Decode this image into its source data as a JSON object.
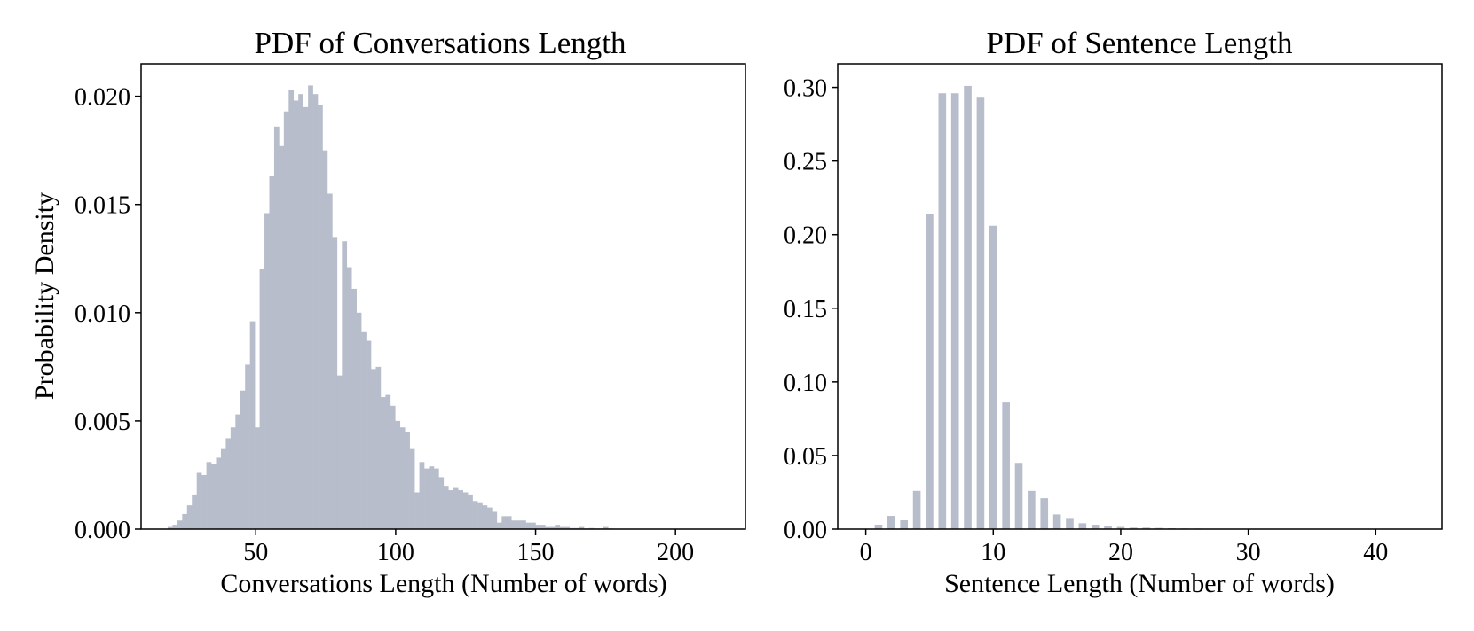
{
  "colors": {
    "bar": "#b7bdcb",
    "axis": "#000000",
    "background": "#ffffff"
  },
  "chart_data": [
    {
      "type": "bar",
      "title": "PDF of Conversations Length",
      "xlabel": "Conversations Length (Number of words)",
      "ylabel": "Probability Density",
      "xlim": [
        9,
        225
      ],
      "ylim": [
        0,
        0.0215
      ],
      "xticks": [
        50,
        100,
        150,
        200
      ],
      "xtick_labels": [
        "50",
        "100",
        "150",
        "200"
      ],
      "yticks": [
        0.0,
        0.005,
        0.01,
        0.015,
        0.02
      ],
      "ytick_labels": [
        "0.000",
        "0.005",
        "0.010",
        "0.015",
        "0.020"
      ],
      "bin_width": 1.73,
      "bin_start": 18.5,
      "values": [
        0.0001,
        0.0002,
        0.0004,
        0.0007,
        0.0011,
        0.0016,
        0.0026,
        0.0025,
        0.0031,
        0.003,
        0.0033,
        0.0037,
        0.0042,
        0.0047,
        0.0053,
        0.0064,
        0.0076,
        0.0096,
        0.0047,
        0.012,
        0.0146,
        0.0163,
        0.0186,
        0.0177,
        0.0193,
        0.0203,
        0.0198,
        0.0201,
        0.0195,
        0.0205,
        0.0201,
        0.0196,
        0.0175,
        0.0155,
        0.0135,
        0.0071,
        0.0133,
        0.0121,
        0.0111,
        0.01,
        0.0091,
        0.0087,
        0.0074,
        0.0075,
        0.0061,
        0.0062,
        0.0057,
        0.005,
        0.0047,
        0.0045,
        0.0037,
        0.0017,
        0.0031,
        0.0028,
        0.0029,
        0.0028,
        0.0024,
        0.002,
        0.0018,
        0.0019,
        0.0018,
        0.0017,
        0.0016,
        0.0013,
        0.0012,
        0.0011,
        0.001,
        0.0008,
        0.0003,
        0.0006,
        0.0006,
        0.0004,
        0.0004,
        0.0004,
        0.0003,
        0.0003,
        0.0002,
        0.0002,
        0.0001,
        0.0001,
        0.0002,
        0.0001,
        0.0001,
        5e-05,
        5e-05,
        0.0001,
        3e-05,
        5e-05,
        3e-05,
        3e-05,
        0.0001,
        3e-05,
        2e-05,
        2e-05,
        2e-05,
        1e-05,
        1e-05,
        1e-05,
        1e-05,
        1e-05,
        1e-05,
        1e-05
      ],
      "grid": false,
      "legend": "none"
    },
    {
      "type": "bar",
      "title": "PDF of Sentence Length",
      "xlabel": "Sentence Length (Number of words)",
      "ylabel": "",
      "xlim": [
        -2.2,
        45.2
      ],
      "ylim": [
        0,
        0.316
      ],
      "xticks": [
        0,
        10,
        20,
        30,
        40
      ],
      "xtick_labels": [
        "0",
        "10",
        "20",
        "30",
        "40"
      ],
      "yticks": [
        0.0,
        0.05,
        0.1,
        0.15,
        0.2,
        0.25,
        0.3
      ],
      "ytick_labels": [
        "0.00",
        "0.05",
        "0.10",
        "0.15",
        "0.20",
        "0.25",
        "0.30"
      ],
      "bar_width": 0.6,
      "x": [
        1,
        2,
        3,
        4,
        5,
        6,
        7,
        8,
        9,
        10,
        11,
        12,
        13,
        14,
        15,
        16,
        17,
        18,
        19,
        20,
        21,
        22,
        23,
        24,
        25,
        26,
        27,
        28,
        29,
        30
      ],
      "values": [
        0.003,
        0.009,
        0.006,
        0.026,
        0.214,
        0.296,
        0.296,
        0.301,
        0.293,
        0.206,
        0.086,
        0.045,
        0.026,
        0.021,
        0.01,
        0.007,
        0.004,
        0.003,
        0.002,
        0.0015,
        0.001,
        0.001,
        0.0008,
        0.0006,
        0.0005,
        0.0004,
        0.0003,
        0.0002,
        0.0002,
        0.0001
      ],
      "grid": false,
      "legend": "none"
    }
  ]
}
